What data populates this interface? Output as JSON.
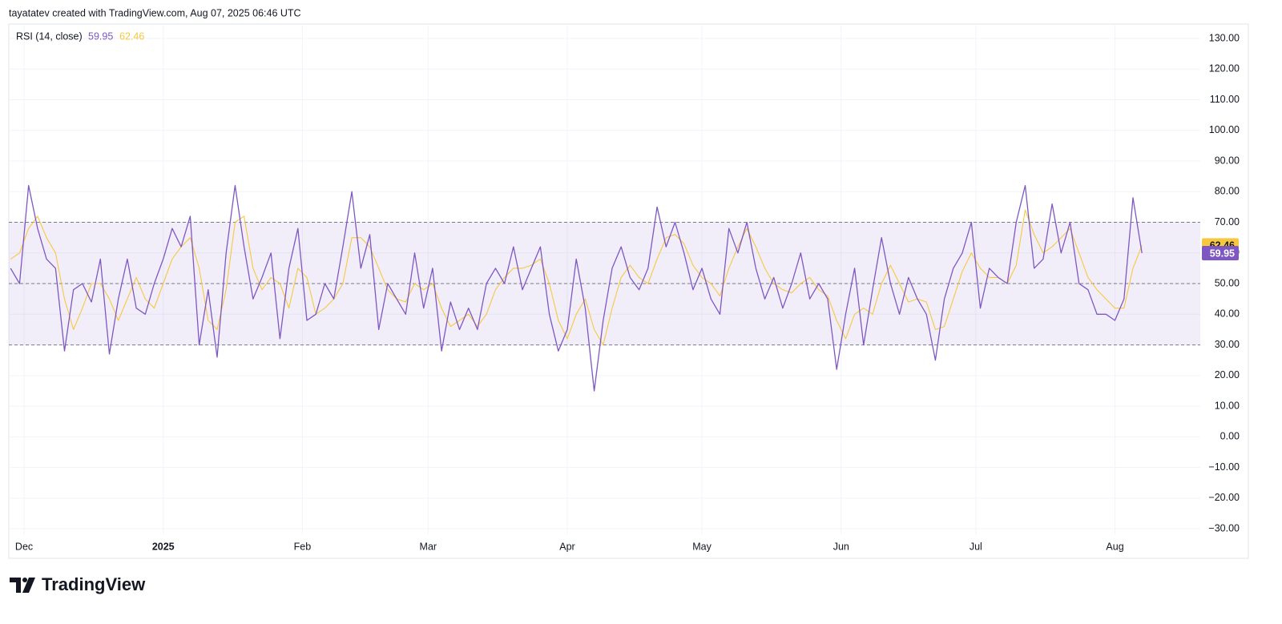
{
  "header": "tayatatev created with TradingView.com, Aug 07, 2025 06:46 UTC",
  "footer_logo": "TradingView",
  "chart_data": {
    "type": "line",
    "indicator": "RSI (14, close)",
    "xlim": [
      -0.2,
      132.5
    ],
    "xticks": [
      {
        "value": 1.5,
        "label": "Dec"
      },
      {
        "value": 17,
        "label": "2025"
      },
      {
        "value": 32.5,
        "label": "Feb"
      },
      {
        "value": 46.5,
        "label": "Mar"
      },
      {
        "value": 62,
        "label": "Apr"
      },
      {
        "value": 77,
        "label": "May"
      },
      {
        "value": 92.5,
        "label": "Jun"
      },
      {
        "value": 107.5,
        "label": "Jul"
      },
      {
        "value": 123,
        "label": "Aug"
      }
    ],
    "ylim": [
      -31.8,
      134.7
    ],
    "yticks": [
      {
        "value": 130,
        "label": "130.00"
      },
      {
        "value": 120,
        "label": "120.00"
      },
      {
        "value": 110,
        "label": "110.00"
      },
      {
        "value": 100,
        "label": "100.00"
      },
      {
        "value": 90,
        "label": "90.00"
      },
      {
        "value": 80,
        "label": "80.00"
      },
      {
        "value": 70,
        "label": "70.00"
      },
      {
        "value": 60,
        "label": "60.00"
      },
      {
        "value": 50,
        "label": "50.00"
      },
      {
        "value": 40,
        "label": "40.00"
      },
      {
        "value": 30,
        "label": "30.00"
      },
      {
        "value": 20,
        "label": "20.00"
      },
      {
        "value": 10,
        "label": "10.00"
      },
      {
        "value": 0,
        "label": "0.00"
      },
      {
        "value": -10,
        "label": "−10.00"
      },
      {
        "value": -20,
        "label": "−20.00"
      },
      {
        "value": -30,
        "label": "−30.00"
      }
    ],
    "grid": true,
    "band": [
      30,
      70
    ],
    "band_color": "#7e57c2",
    "levels": [
      70,
      50,
      30
    ],
    "series": [
      {
        "color": "#7e57c2",
        "values": [
          55,
          50,
          82,
          68,
          58,
          55,
          28,
          48,
          50,
          44,
          58,
          27,
          45,
          58,
          42,
          40,
          50,
          58,
          68,
          62,
          72,
          30,
          48,
          26,
          60,
          82,
          62,
          45,
          52,
          60,
          32,
          55,
          68,
          38,
          40,
          50,
          45,
          62,
          80,
          55,
          66,
          35,
          50,
          45,
          40,
          60,
          42,
          55,
          28,
          44,
          35,
          42,
          35,
          50,
          55,
          50,
          62,
          48,
          55,
          62,
          40,
          28,
          35,
          58,
          42,
          15,
          38,
          55,
          62,
          52,
          48,
          55,
          75,
          62,
          70,
          60,
          48,
          55,
          45,
          40,
          68,
          60,
          70,
          55,
          45,
          52,
          42,
          50,
          60,
          45,
          50,
          45,
          22,
          40,
          55,
          30,
          48,
          65,
          50,
          40,
          52,
          45,
          40,
          25,
          45,
          55,
          60,
          70,
          42,
          55,
          52,
          50,
          70,
          82,
          55,
          58,
          76,
          60,
          70,
          50,
          48,
          40,
          40,
          38,
          45,
          78,
          59.95
        ]
      },
      {
        "color": "#f7c83f",
        "values": [
          58,
          60,
          68,
          72,
          65,
          60,
          45,
          35,
          42,
          50,
          50,
          45,
          38,
          45,
          52,
          45,
          42,
          50,
          58,
          62,
          65,
          55,
          38,
          35,
          48,
          70,
          72,
          55,
          48,
          52,
          50,
          42,
          55,
          52,
          40,
          42,
          45,
          50,
          65,
          65,
          62,
          55,
          48,
          45,
          44,
          50,
          48,
          50,
          42,
          36,
          38,
          40,
          36,
          40,
          48,
          52,
          55,
          55,
          56,
          58,
          50,
          38,
          32,
          40,
          45,
          35,
          30,
          42,
          52,
          56,
          52,
          50,
          58,
          65,
          66,
          63,
          56,
          52,
          50,
          46,
          55,
          62,
          68,
          62,
          55,
          50,
          48,
          47,
          50,
          52,
          48,
          46,
          38,
          32,
          40,
          42,
          40,
          50,
          56,
          50,
          44,
          45,
          44,
          35,
          36,
          45,
          54,
          60,
          55,
          52,
          52,
          50,
          56,
          74,
          66,
          60,
          62,
          65,
          68,
          60,
          52,
          48,
          45,
          42,
          42,
          55,
          62.46
        ]
      }
    ]
  }
}
